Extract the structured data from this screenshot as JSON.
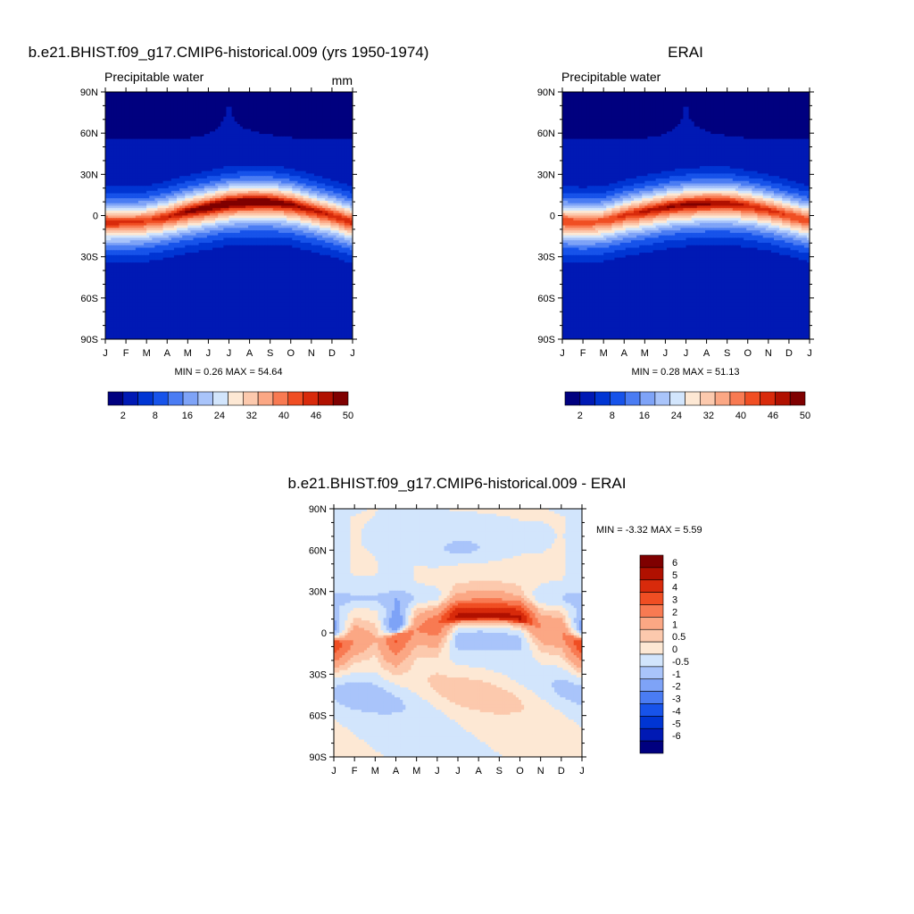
{
  "panels": {
    "model": {
      "title": "b.e21.BHIST.f09_g17.CMIP6-historical.009 (yrs 1950-1974)",
      "subtitle": "Precipitable water",
      "units": "mm",
      "stats": "MIN =   0.26 MAX =   54.64"
    },
    "obs": {
      "title": "ERAI",
      "subtitle": "Precipitable water",
      "stats": "MIN =   0.28 MAX =   51.13"
    },
    "diff": {
      "title": "b.e21.BHIST.f09_g17.CMIP6-historical.009 - ERAI",
      "stats": "MIN =  -3.32 MAX =    5.59"
    }
  },
  "axes": {
    "y_ticks": [
      "90N",
      "60N",
      "30N",
      "0",
      "30S",
      "60S",
      "90S"
    ],
    "x_ticks": [
      "J",
      "F",
      "M",
      "A",
      "M",
      "J",
      "J",
      "A",
      "S",
      "O",
      "N",
      "D",
      "J"
    ]
  },
  "colorbars": {
    "abs": {
      "labels": [
        "2",
        "8",
        "16",
        "24",
        "32",
        "40",
        "46",
        "50"
      ],
      "colors": [
        "#00007f",
        "#0019b4",
        "#0035d3",
        "#1753ea",
        "#4a7cf3",
        "#7ea3f7",
        "#a9c4fa",
        "#d2e5fc",
        "#fde8d4",
        "#fcc9ad",
        "#fba784",
        "#f87a52",
        "#f04e23",
        "#d82a0b",
        "#b01000",
        "#7f0000"
      ]
    },
    "diff": {
      "labels": [
        "6",
        "5",
        "4",
        "3",
        "2",
        "1",
        "0.5",
        "0",
        "-0.5",
        "-1",
        "-2",
        "-3",
        "-4",
        "-5",
        "-6"
      ],
      "colors": [
        "#7f0000",
        "#b01000",
        "#d82a0b",
        "#f04e23",
        "#f87a52",
        "#fba784",
        "#fcc9ad",
        "#fde8d4",
        "#d2e5fc",
        "#a9c4fa",
        "#7ea3f7",
        "#4a7cf3",
        "#1753ea",
        "#0035d3",
        "#0019b4",
        "#00007f"
      ]
    }
  },
  "chart_data": [
    {
      "type": "heatmap",
      "title": "b.e21.BHIST.f09_g17.CMIP6-historical.009 (yrs 1950-1974)",
      "subtitle": "Precipitable water",
      "units": "mm",
      "x": [
        "J",
        "F",
        "M",
        "A",
        "M",
        "J",
        "J",
        "A",
        "S",
        "O",
        "N",
        "D",
        "J"
      ],
      "y": [
        "90N",
        "60N",
        "30N",
        "0",
        "30S",
        "60S",
        "90S"
      ],
      "min": 0.26,
      "max": 54.64,
      "itcz_latitude_by_month": [
        -5,
        -5,
        -4,
        -1,
        3,
        6,
        9,
        10,
        10,
        8,
        4,
        0,
        -5
      ],
      "peak_value_by_month": [
        48,
        47,
        46,
        48,
        51,
        53,
        54,
        54,
        53,
        51,
        49,
        48,
        48
      ],
      "nh_width": 13,
      "sh_width": 15
    },
    {
      "type": "heatmap",
      "title": "ERAI",
      "subtitle": "Precipitable water",
      "x": [
        "J",
        "F",
        "M",
        "A",
        "M",
        "J",
        "J",
        "A",
        "S",
        "O",
        "N",
        "D",
        "J"
      ],
      "y": [
        "90N",
        "60N",
        "30N",
        "0",
        "30S",
        "60S",
        "90S"
      ],
      "min": 0.28,
      "max": 51.13,
      "itcz_latitude_by_month": [
        -4,
        -5,
        -4,
        0,
        3,
        6,
        8,
        9,
        9,
        7,
        4,
        0,
        -4
      ],
      "peak_value_by_month": [
        46,
        45,
        45,
        47,
        49,
        50,
        51,
        51,
        50,
        48,
        47,
        46,
        46
      ],
      "nh_width": 13,
      "sh_width": 15
    },
    {
      "type": "heatmap",
      "title": "b.e21.BHIST.f09_g17.CMIP6-historical.009 - ERAI",
      "x": [
        "J",
        "F",
        "M",
        "A",
        "M",
        "J",
        "J",
        "A",
        "S",
        "O",
        "N",
        "D",
        "J"
      ],
      "y": [
        "90N",
        "60N",
        "30N",
        "0",
        "30S",
        "60S",
        "90S"
      ],
      "min": -3.32,
      "max": 5.59
    }
  ]
}
